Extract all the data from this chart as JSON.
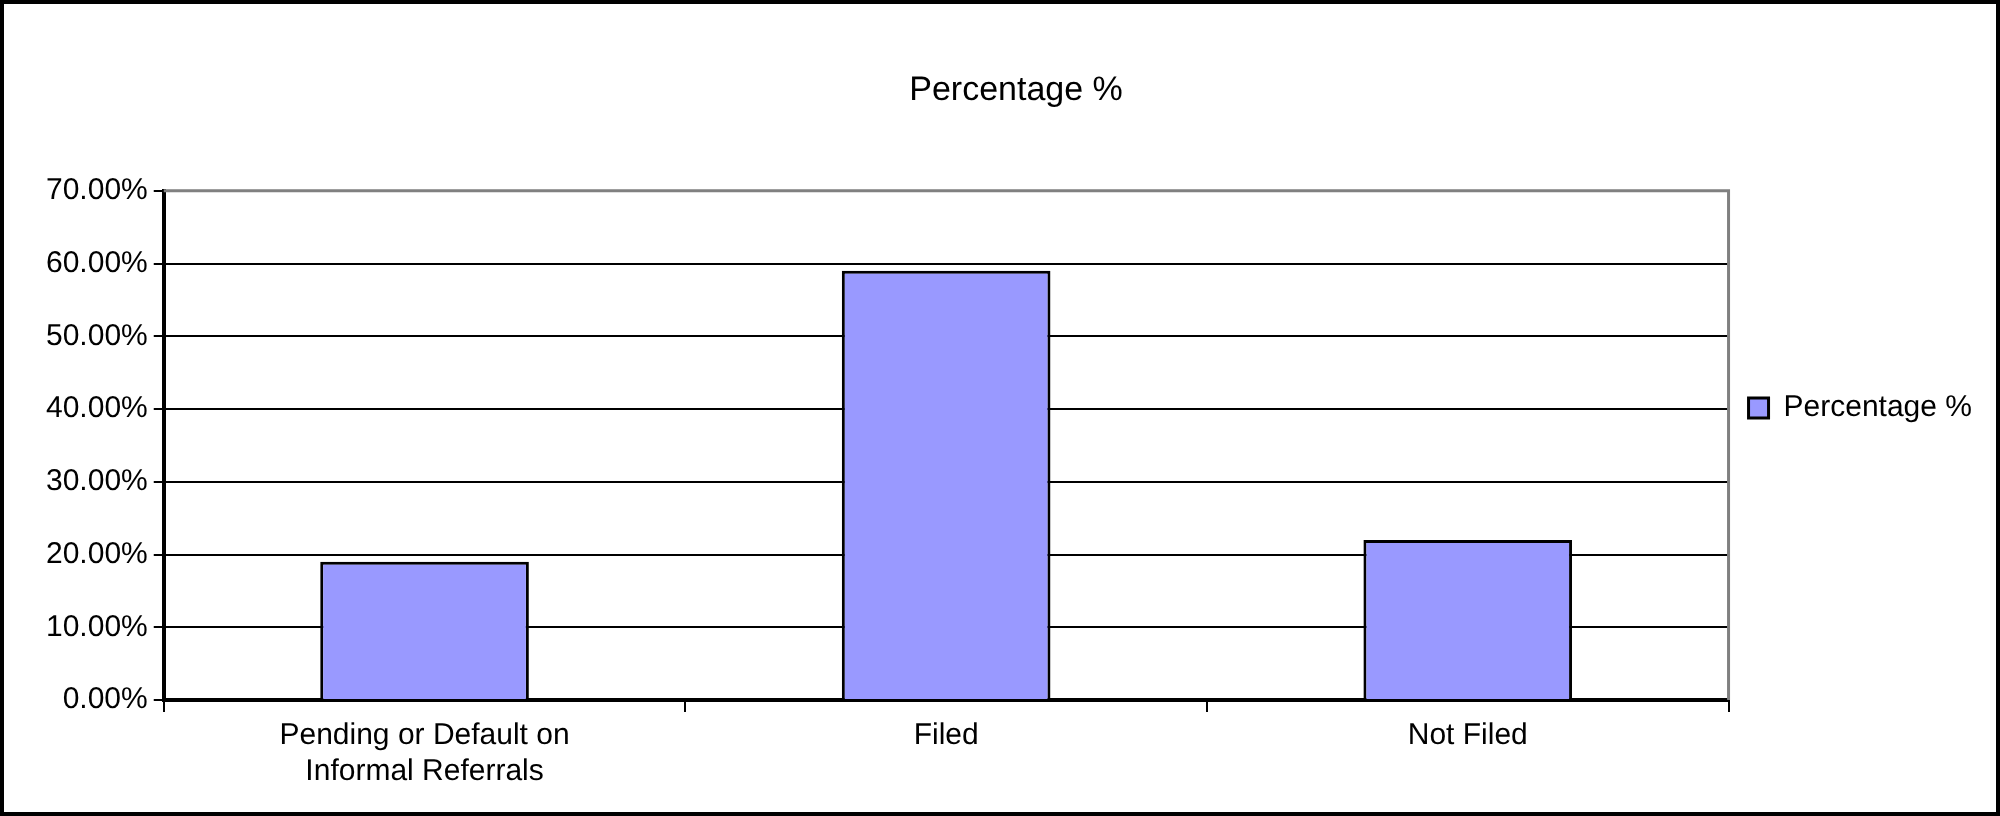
{
  "chart_data": {
    "type": "bar",
    "title": "Percentage %",
    "categories": [
      "Pending or Default on Informal Referrals",
      "Filed",
      "Not Filed"
    ],
    "series": [
      {
        "name": "Percentage %",
        "color": "#9999ff",
        "values": [
          19,
          59,
          22
        ]
      }
    ],
    "ylim": [
      0,
      70
    ],
    "yticks": [
      {
        "value": 0,
        "label": "0.00%"
      },
      {
        "value": 10,
        "label": "10.00%"
      },
      {
        "value": 20,
        "label": "20.00%"
      },
      {
        "value": 30,
        "label": "30.00%"
      },
      {
        "value": 40,
        "label": "40.00%"
      },
      {
        "value": 50,
        "label": "50.00%"
      },
      {
        "value": 60,
        "label": "60.00%"
      },
      {
        "value": 70,
        "label": "70.00%"
      }
    ],
    "grid": "y",
    "legend": "right"
  }
}
